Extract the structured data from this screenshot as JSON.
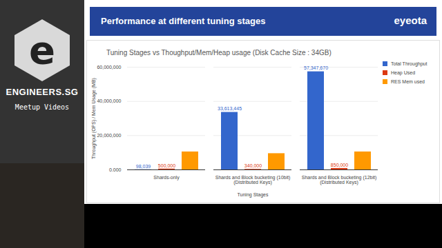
{
  "sidebar": {
    "logo_letter": "e",
    "name": "ENGINEERS.SG",
    "tagline": "Meetup Videos"
  },
  "slide": {
    "title": "Performance at different tuning stages",
    "brand": "eyeota"
  },
  "chart_data": {
    "type": "bar",
    "title": "Tuning Stages vs Thoughput/Mem/Heap usage (Disk Cache Size : 34GB)",
    "x_label": "Tuning Stages",
    "y_label": "Throughput (OPS) / Mem Usage (MB)",
    "categories": [
      "Shards-only",
      "Shards and Block bucketing (10bit)\n(Distributed Keys)",
      "Shards and Block bucketing (12bit)\n(Distributed Keys)"
    ],
    "series": [
      {
        "name": "Total Throughput",
        "color": "#3366cc",
        "values": [
          98039,
          33613445,
          57347670
        ],
        "value_labels": [
          "98,039",
          "33,613,445",
          "57,347,670"
        ]
      },
      {
        "name": "Heap Used",
        "color": "#dc3912",
        "values": [
          500000,
          340000,
          850000
        ],
        "value_labels": [
          "500,000",
          "340,000",
          "850,000"
        ]
      },
      {
        "name": "RES Mem used",
        "color": "#ff9900",
        "values": [
          10500000,
          9500000,
          10500000
        ]
      }
    ],
    "ylim": [
      0,
      60000000
    ],
    "yticks": [
      {
        "value": 0,
        "label": "0.000"
      },
      {
        "value": 20000000,
        "label": "20,000,000"
      },
      {
        "value": 40000000,
        "label": "40,000,000"
      },
      {
        "value": 60000000,
        "label": "60,000,000"
      }
    ],
    "grid": true,
    "legend": "right",
    "data_labels": true
  }
}
